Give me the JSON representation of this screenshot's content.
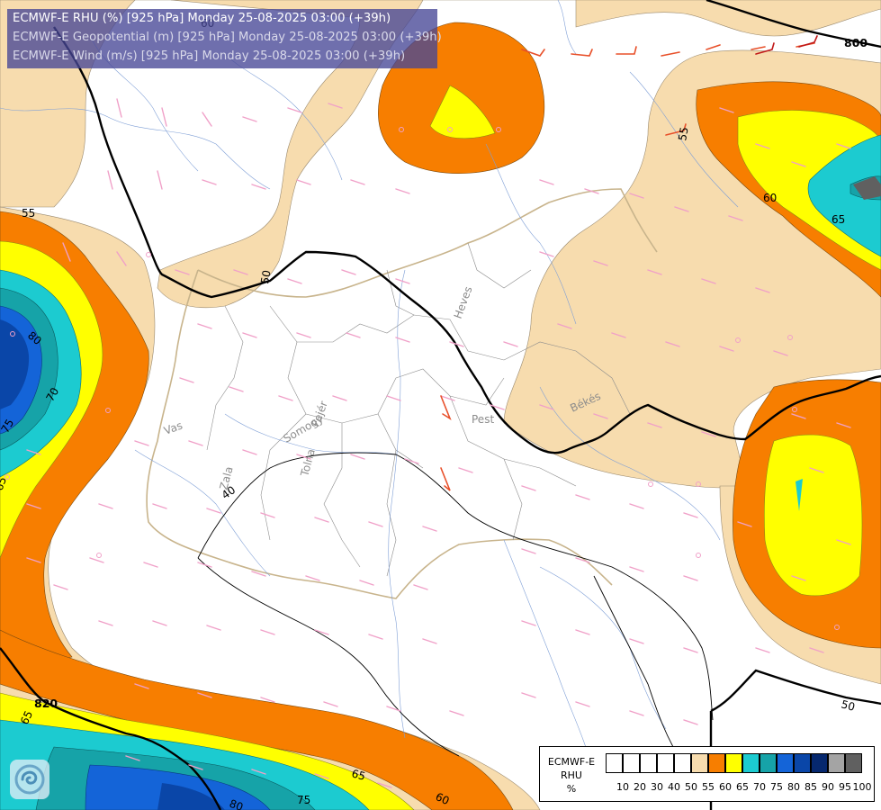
{
  "title": {
    "line1": "ECMWF-E RHU (%) [925 hPa] Monday 25-08-2025 03:00 (+39h)",
    "line2": "ECMWF-E Geopotential (m) [925 hPa] Monday 25-08-2025 03:00 (+39h)",
    "line3": "ECMWF-E Wind (m/s) [925 hPa] Monday 25-08-2025 03:00 (+39h)"
  },
  "contour_labels": {
    "rhu": [
      "55",
      "55",
      "50",
      "60",
      "65",
      "70",
      "75",
      "80",
      "65",
      "65",
      "60",
      "65",
      "75",
      "80",
      "50",
      "40",
      "60"
    ],
    "geopotential": [
      "820",
      "800"
    ]
  },
  "region_labels": [
    "Heves",
    "Pest",
    "Békés",
    "Vas",
    "Somogy",
    "Fejér",
    "Tolna",
    "Zala"
  ],
  "legend": {
    "title_line1": "ECMWF-E",
    "title_line2": "RHU",
    "unit": "%",
    "ticks": [
      "10",
      "20",
      "30",
      "40",
      "50",
      "55",
      "60",
      "65",
      "70",
      "75",
      "80",
      "85",
      "90",
      "95",
      "100"
    ],
    "colors": [
      "#ffffff",
      "#ffffff",
      "#ffffff",
      "#ffffff",
      "#ffffff",
      "#f7dcae",
      "#f77e00",
      "#ffff00",
      "#1ccbd0",
      "#16a3a8",
      "#1464d8",
      "#0a46a8",
      "#06286e",
      "#a4a4a4",
      "#606060"
    ]
  },
  "colors": {
    "rh_55": "#f7dcae",
    "rh_60": "#f77e00",
    "rh_65": "#ffff00",
    "rh_70": "#1ccbd0",
    "rh_75": "#16a3a8",
    "rh_80": "#1464d8",
    "rh_85": "#0a46a8",
    "wind_barb": "#f0a0c8",
    "wind_barb_strong": "#e8502a",
    "border": "#c8b48c",
    "river": "#7f9fd6"
  },
  "logo": {
    "icon": "ecmwf-swirl-icon"
  }
}
